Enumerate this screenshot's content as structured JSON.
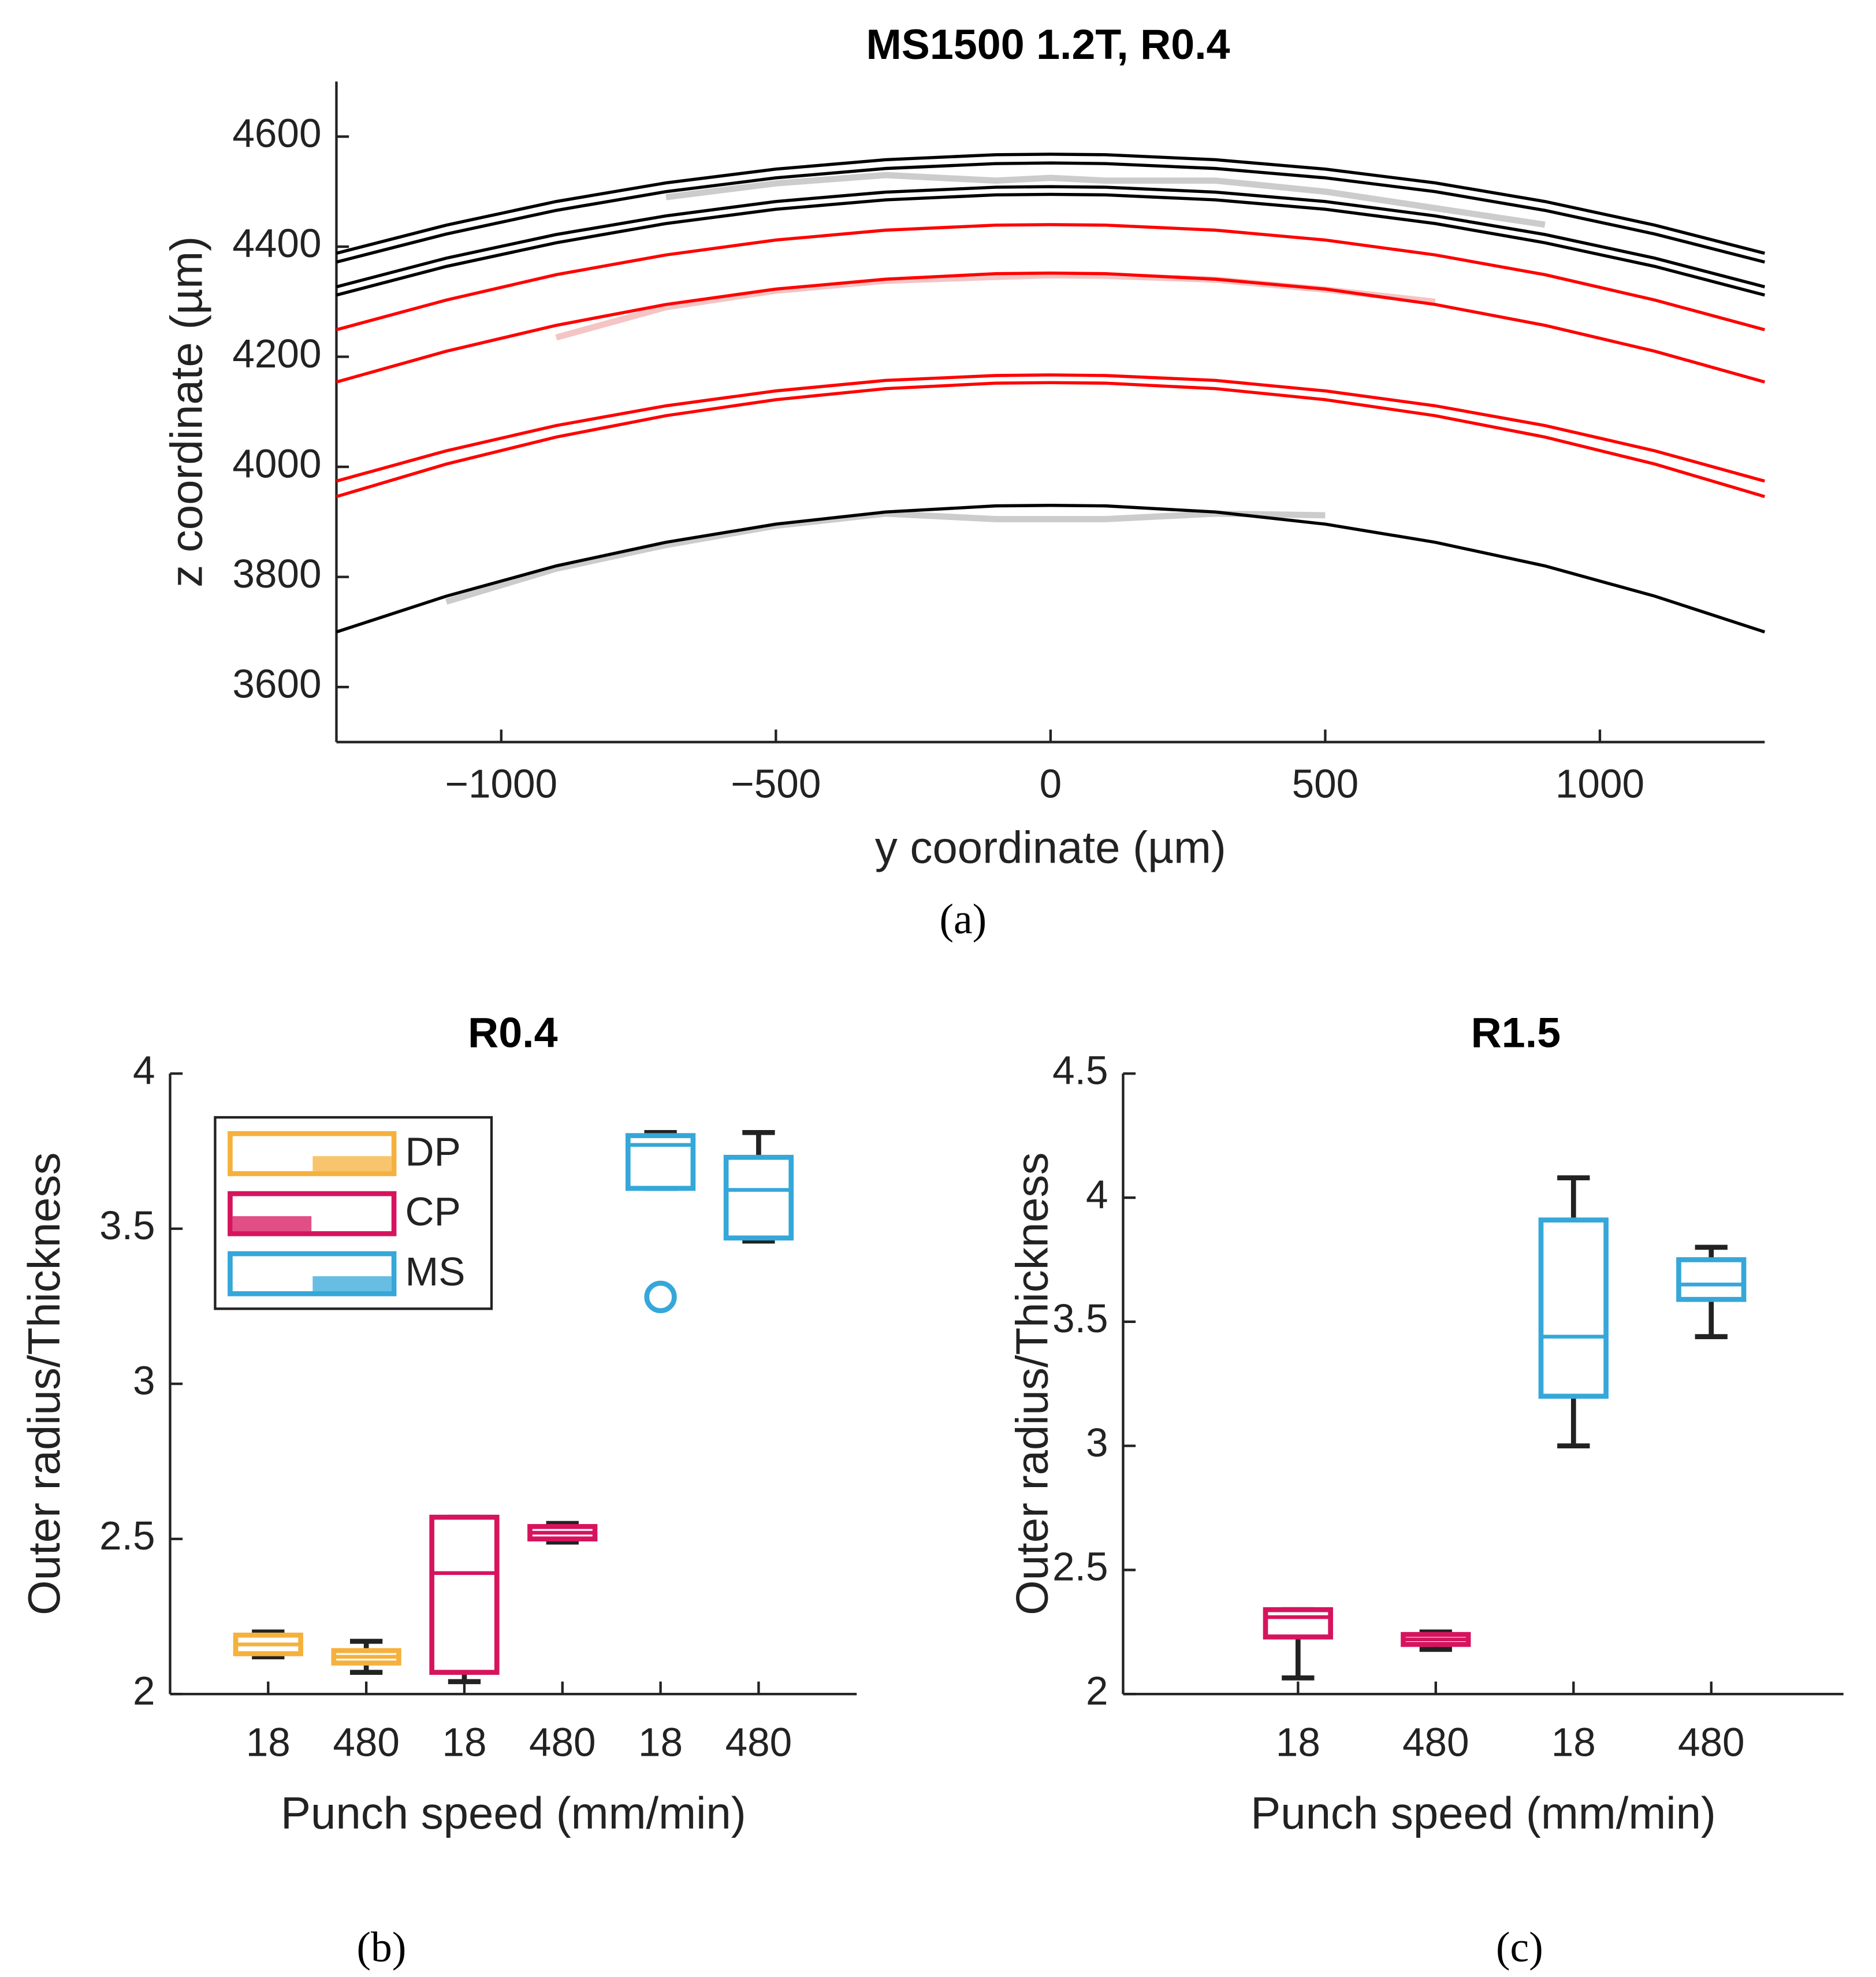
{
  "chart_data": [
    {
      "type": "line",
      "title": "MS1500 1.2T, R0.4",
      "xlabel": "y coordinate (µm)",
      "ylabel": "z coordinate (µm)",
      "caption": "(a)",
      "x": [
        -1300,
        -1100,
        -900,
        -700,
        -500,
        -300,
        -100,
        0,
        100,
        300,
        500,
        700,
        900,
        1100,
        1300
      ],
      "xlim": [
        -1300,
        1300
      ],
      "ylim": [
        3500,
        4700
      ],
      "xticks": [
        {
          "value": -1000,
          "label": "−1000"
        },
        {
          "value": -500,
          "label": "−500"
        },
        0,
        500,
        1000
      ],
      "yticks": [
        3600,
        3800,
        4000,
        4200,
        4400,
        4600
      ],
      "series": [
        {
          "color": "#cccccc",
          "values": [
            null,
            3755,
            3815,
            3858,
            3893,
            3915,
            3905,
            3905,
            3905,
            3915,
            3912,
            null,
            null,
            null,
            null
          ]
        },
        {
          "color": "#f5c4c4",
          "values": [
            null,
            null,
            4235,
            4290,
            4320,
            4338,
            4345,
            4348,
            4347,
            4340,
            4322,
            4300,
            null,
            null,
            null
          ]
        },
        {
          "color": "#cccccc",
          "values": [
            null,
            null,
            null,
            4490,
            4515,
            4530,
            4520,
            4525,
            4520,
            4520,
            4500,
            4470,
            4440,
            null,
            null
          ]
        },
        {
          "color": "#000000",
          "values": [
            4388,
            4439,
            4482,
            4516,
            4541,
            4558,
            4567,
            4568,
            4567,
            4558,
            4541,
            4516,
            4482,
            4439,
            4388
          ]
        },
        {
          "color": "#000000",
          "values": [
            4372,
            4423,
            4466,
            4500,
            4525,
            4542,
            4551,
            4552,
            4551,
            4542,
            4525,
            4500,
            4466,
            4423,
            4372
          ]
        },
        {
          "color": "#000000",
          "values": [
            4327,
            4379,
            4422,
            4456,
            4482,
            4499,
            4508,
            4509,
            4508,
            4499,
            4482,
            4456,
            4422,
            4379,
            4327
          ]
        },
        {
          "color": "#000000",
          "values": [
            4312,
            4364,
            4407,
            4442,
            4468,
            4485,
            4494,
            4495,
            4494,
            4485,
            4468,
            4442,
            4407,
            4364,
            4312
          ]
        },
        {
          "color": "#ff0000",
          "values": [
            4249,
            4303,
            4349,
            4385,
            4412,
            4430,
            4439,
            4440,
            4439,
            4430,
            4412,
            4385,
            4349,
            4303,
            4249
          ]
        },
        {
          "color": "#ff0000",
          "values": [
            4154,
            4210,
            4257,
            4295,
            4323,
            4341,
            4351,
            4352,
            4351,
            4341,
            4323,
            4295,
            4257,
            4210,
            4154
          ]
        },
        {
          "color": "#ff0000",
          "values": [
            3974,
            4029,
            4075,
            4111,
            4138,
            4157,
            4166,
            4167,
            4166,
            4157,
            4138,
            4111,
            4075,
            4029,
            3974
          ]
        },
        {
          "color": "#ff0000",
          "values": [
            3946,
            4005,
            4054,
            4093,
            4122,
            4142,
            4152,
            4153,
            4152,
            4142,
            4122,
            4093,
            4054,
            4005,
            3946
          ]
        },
        {
          "color": "#000000",
          "values": [
            3700,
            3765,
            3820,
            3863,
            3896,
            3918,
            3929,
            3930,
            3929,
            3918,
            3896,
            3863,
            3820,
            3765,
            3700
          ]
        }
      ]
    },
    {
      "type": "box",
      "title": "R0.4",
      "xlabel": "Punch speed (mm/min)",
      "ylabel": "Outer radius/Thickness",
      "caption": "(b)",
      "categories": [
        "18",
        "480",
        "18",
        "480",
        "18",
        "480"
      ],
      "xlim": [
        0,
        7
      ],
      "ylim": [
        2,
        4
      ],
      "yticks": [
        2,
        2.5,
        3,
        3.5,
        4
      ],
      "legend": "upper left",
      "series": [
        {
          "name": "DP",
          "color": "#f5b13d",
          "values": [
            {
              "min": 2.12,
              "q1": 2.13,
              "median": 2.16,
              "q3": 2.19,
              "max": 2.2
            },
            {
              "min": 2.07,
              "q1": 2.1,
              "median": 2.12,
              "q3": 2.14,
              "max": 2.17
            },
            null,
            null,
            null,
            null
          ]
        },
        {
          "name": "CP",
          "color": "#d6145e",
          "values": [
            null,
            null,
            {
              "min": 2.04,
              "q1": 2.07,
              "median": 2.39,
              "q3": 2.57,
              "max": 2.57
            },
            {
              "min": 2.49,
              "q1": 2.5,
              "median": 2.52,
              "q3": 2.54,
              "max": 2.55
            },
            null,
            null
          ]
        },
        {
          "name": "MS",
          "color": "#35a7d9",
          "values": [
            null,
            null,
            null,
            null,
            {
              "min": 3.63,
              "q1": 3.63,
              "median": 3.77,
              "q3": 3.8,
              "max": 3.81,
              "outliers": [
                3.28
              ]
            },
            {
              "min": 3.46,
              "q1": 3.47,
              "median": 3.625,
              "q3": 3.73,
              "max": 3.81
            }
          ]
        }
      ]
    },
    {
      "type": "box",
      "title": "R1.5",
      "xlabel": "Punch speed (mm/min)",
      "ylabel": "Outer radius/Thickness",
      "caption": "(c)",
      "categories": [
        "18",
        "480",
        "18",
        "480"
      ],
      "xlim": [
        -0.27,
        4.96
      ],
      "ylim": [
        2,
        4.5
      ],
      "yticks": [
        2,
        2.5,
        3,
        3.5,
        4,
        4.5
      ],
      "series": [
        {
          "color": "#d6145e",
          "values": [
            {
              "min": 2.065,
              "q1": 2.23,
              "median": 2.31,
              "q3": 2.34,
              "max": 2.34
            },
            {
              "min": 2.18,
              "q1": 2.2,
              "median": 2.22,
              "q3": 2.24,
              "max": 2.25
            },
            null,
            null
          ]
        },
        {
          "color": "#35a7d9",
          "values": [
            null,
            null,
            {
              "min": 3.0,
              "q1": 3.2,
              "median": 3.44,
              "q3": 3.91,
              "max": 4.08
            },
            {
              "min": 3.44,
              "q1": 3.59,
              "median": 3.65,
              "q3": 3.75,
              "max": 3.8
            }
          ]
        }
      ]
    }
  ]
}
